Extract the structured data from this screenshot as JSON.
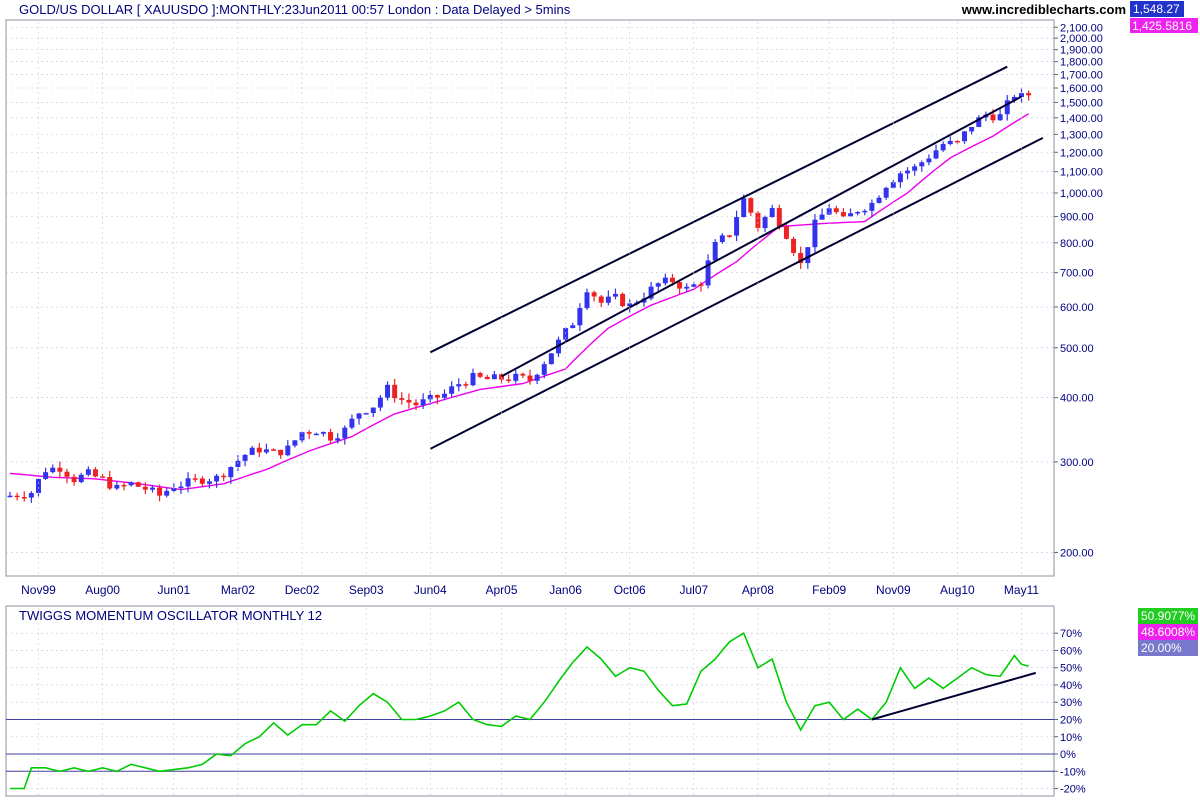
{
  "header": {
    "title": "GOLD/US DOLLAR [ XAUUSDO ]:MONTHLY:23Jun2011 00:57 London : Data Delayed > 5mins",
    "site": "www.incrediblecharts.com",
    "last_price_tag": "1,548.27",
    "ma_tag": "1,425.5816"
  },
  "lower": {
    "title": "TWIGGS MOMENTUM OSCILLATOR MONTHLY 12",
    "tags": [
      "50.9077%",
      "48.6008%",
      "20.00%"
    ]
  },
  "colors": {
    "up_candle": "#3333ee",
    "down_candle": "#ee2222",
    "moving_average": "#ee00ee",
    "oscillator": "#00cc00",
    "trendline": "#000033",
    "grid": "#c8c8d8",
    "axis_text": "#000080"
  },
  "chart_data": [
    {
      "type": "candlestick",
      "title": "GOLD/US DOLLAR [ XAUUSDO ]:MONTHLY:23Jun2011 00:57 London : Data Delayed > 5mins",
      "scale": "log",
      "ylim": [
        180,
        2150
      ],
      "y_tick_labels": [
        "2,100.00",
        "2,000.00",
        "1,900.00",
        "1,800.00",
        "1,700.00",
        "1,600.00",
        "1,500.00",
        "1,400.00",
        "1,300.00",
        "1,200.00",
        "1,100.00",
        "1,000.00",
        "900.00",
        "800.00",
        "700.00",
        "600.00",
        "500.00",
        "400.00",
        "300.00",
        "200.00"
      ],
      "y_ticks": [
        2100,
        2000,
        1900,
        1800,
        1700,
        1600,
        1500,
        1400,
        1300,
        1200,
        1100,
        1000,
        900,
        800,
        700,
        600,
        500,
        400,
        300,
        200
      ],
      "x_tick_labels": [
        "Nov99",
        "Aug00",
        "Jun01",
        "Mar02",
        "Dec02",
        "Sep03",
        "Jun04",
        "Apr05",
        "Jan06",
        "Oct06",
        "Jul07",
        "Apr08",
        "Feb09",
        "Nov09",
        "Aug10",
        "May11"
      ],
      "close_anchors": [
        [
          "1999-07",
          258
        ],
        [
          "1999-10",
          262
        ],
        [
          "1999-12",
          290
        ],
        [
          "2000-02",
          293
        ],
        [
          "2000-04",
          278
        ],
        [
          "2000-06",
          284
        ],
        [
          "2000-08",
          277
        ],
        [
          "2000-10",
          266
        ],
        [
          "2000-12",
          272
        ],
        [
          "2001-02",
          266
        ],
        [
          "2001-04",
          258
        ],
        [
          "2001-06",
          270
        ],
        [
          "2001-08",
          273
        ],
        [
          "2001-10",
          278
        ],
        [
          "2001-12",
          279
        ],
        [
          "2002-02",
          294
        ],
        [
          "2002-04",
          310
        ],
        [
          "2002-06",
          318
        ],
        [
          "2002-08",
          312
        ],
        [
          "2002-10",
          318
        ],
        [
          "2002-12",
          343
        ],
        [
          "2003-02",
          346
        ],
        [
          "2003-04",
          336
        ],
        [
          "2003-06",
          346
        ],
        [
          "2003-08",
          375
        ],
        [
          "2003-10",
          386
        ],
        [
          "2003-12",
          416
        ],
        [
          "2004-02",
          396
        ],
        [
          "2004-04",
          388
        ],
        [
          "2004-06",
          396
        ],
        [
          "2004-08",
          406
        ],
        [
          "2004-10",
          426
        ],
        [
          "2004-12",
          437
        ],
        [
          "2005-02",
          434
        ],
        [
          "2005-04",
          436
        ],
        [
          "2005-06",
          437
        ],
        [
          "2005-08",
          433
        ],
        [
          "2005-10",
          470
        ],
        [
          "2005-12",
          513
        ],
        [
          "2006-02",
          560
        ],
        [
          "2006-04",
          655
        ],
        [
          "2006-06",
          612
        ],
        [
          "2006-08",
          624
        ],
        [
          "2006-10",
          604
        ],
        [
          "2006-12",
          633
        ],
        [
          "2007-02",
          665
        ],
        [
          "2007-04",
          676
        ],
        [
          "2007-06",
          650
        ],
        [
          "2007-08",
          672
        ],
        [
          "2007-10",
          790
        ],
        [
          "2007-12",
          836
        ],
        [
          "2008-02",
          972
        ],
        [
          "2008-04",
          862
        ],
        [
          "2008-06",
          928
        ],
        [
          "2008-08",
          833
        ],
        [
          "2008-10",
          725
        ],
        [
          "2008-12",
          868
        ],
        [
          "2009-02",
          942
        ],
        [
          "2009-04",
          883
        ],
        [
          "2009-06",
          929
        ],
        [
          "2009-08",
          955
        ],
        [
          "2009-10",
          1040
        ],
        [
          "2009-12",
          1096
        ],
        [
          "2010-02",
          1118
        ],
        [
          "2010-04",
          1180
        ],
        [
          "2010-06",
          1245
        ],
        [
          "2010-08",
          1248
        ],
        [
          "2010-10",
          1357
        ],
        [
          "2010-12",
          1421
        ],
        [
          "2011-02",
          1410
        ],
        [
          "2011-04",
          1556
        ],
        [
          "2011-05",
          1536
        ],
        [
          "2011-06",
          1548.27
        ]
      ],
      "moving_average_anchors": [
        [
          "1999-07",
          285
        ],
        [
          "2000-01",
          280
        ],
        [
          "2000-07",
          278
        ],
        [
          "2001-01",
          272
        ],
        [
          "2001-07",
          265
        ],
        [
          "2002-01",
          272
        ],
        [
          "2002-07",
          290
        ],
        [
          "2003-01",
          315
        ],
        [
          "2003-07",
          336
        ],
        [
          "2004-01",
          372
        ],
        [
          "2004-07",
          393
        ],
        [
          "2005-01",
          415
        ],
        [
          "2005-07",
          426
        ],
        [
          "2006-01",
          455
        ],
        [
          "2006-07",
          546
        ],
        [
          "2007-01",
          605
        ],
        [
          "2007-07",
          650
        ],
        [
          "2008-01",
          735
        ],
        [
          "2008-07",
          860
        ],
        [
          "2009-01",
          872
        ],
        [
          "2009-07",
          880
        ],
        [
          "2010-01",
          1000
        ],
        [
          "2010-07",
          1170
        ],
        [
          "2011-01",
          1290
        ],
        [
          "2011-06",
          1425.58
        ]
      ],
      "channel_lines": [
        {
          "name": "upper",
          "from": [
            "2004-06",
            490
          ],
          "to": [
            "2011-03",
            1760
          ]
        },
        {
          "name": "middle",
          "from": [
            "2005-04",
            440
          ],
          "to": [
            "2011-05",
            1540
          ]
        },
        {
          "name": "lower",
          "from": [
            "2004-06",
            318
          ],
          "to": [
            "2011-08",
            1280
          ]
        }
      ],
      "last_price": 1548.27,
      "last_moving_average": 1425.5816
    },
    {
      "type": "line",
      "title": "TWIGGS MOMENTUM OSCILLATOR MONTHLY 12",
      "ylim": [
        -22,
        73
      ],
      "y_tick_labels": [
        "70%",
        "60%",
        "50%",
        "40%",
        "30%",
        "20%",
        "10%",
        "0%",
        "-10%",
        "-20%"
      ],
      "y_ticks": [
        70,
        60,
        50,
        40,
        30,
        20,
        10,
        0,
        -10,
        -20
      ],
      "reference_lines": [
        20,
        0,
        -10
      ],
      "values_anchors": [
        [
          "1999-07",
          -20
        ],
        [
          "1999-09",
          -20
        ],
        [
          "1999-10",
          -8
        ],
        [
          "1999-12",
          -8
        ],
        [
          "2000-02",
          -10
        ],
        [
          "2000-04",
          -8
        ],
        [
          "2000-06",
          -10
        ],
        [
          "2000-08",
          -8
        ],
        [
          "2000-10",
          -10
        ],
        [
          "2000-12",
          -6
        ],
        [
          "2001-02",
          -8
        ],
        [
          "2001-04",
          -10
        ],
        [
          "2001-06",
          -9
        ],
        [
          "2001-08",
          -8
        ],
        [
          "2001-10",
          -6
        ],
        [
          "2001-12",
          0
        ],
        [
          "2002-02",
          -1
        ],
        [
          "2002-04",
          6
        ],
        [
          "2002-06",
          10
        ],
        [
          "2002-08",
          18
        ],
        [
          "2002-10",
          11
        ],
        [
          "2002-12",
          17
        ],
        [
          "2003-02",
          17
        ],
        [
          "2003-04",
          25
        ],
        [
          "2003-06",
          19
        ],
        [
          "2003-08",
          28
        ],
        [
          "2003-10",
          35
        ],
        [
          "2003-12",
          30
        ],
        [
          "2004-02",
          20
        ],
        [
          "2004-04",
          20
        ],
        [
          "2004-06",
          22
        ],
        [
          "2004-08",
          25
        ],
        [
          "2004-10",
          30
        ],
        [
          "2004-12",
          20
        ],
        [
          "2005-02",
          17
        ],
        [
          "2005-04",
          16
        ],
        [
          "2005-06",
          22
        ],
        [
          "2005-08",
          20
        ],
        [
          "2005-10",
          30
        ],
        [
          "2005-12",
          42
        ],
        [
          "2006-02",
          53
        ],
        [
          "2006-04",
          62
        ],
        [
          "2006-06",
          55
        ],
        [
          "2006-08",
          45
        ],
        [
          "2006-10",
          50
        ],
        [
          "2006-12",
          48
        ],
        [
          "2007-02",
          37
        ],
        [
          "2007-04",
          28
        ],
        [
          "2007-06",
          29
        ],
        [
          "2007-08",
          48
        ],
        [
          "2007-10",
          55
        ],
        [
          "2007-12",
          65
        ],
        [
          "2008-02",
          70
        ],
        [
          "2008-04",
          50
        ],
        [
          "2008-06",
          55
        ],
        [
          "2008-08",
          30
        ],
        [
          "2008-10",
          14
        ],
        [
          "2008-12",
          28
        ],
        [
          "2009-02",
          30
        ],
        [
          "2009-04",
          20
        ],
        [
          "2009-06",
          26
        ],
        [
          "2009-08",
          20
        ],
        [
          "2009-10",
          30
        ],
        [
          "2009-12",
          50
        ],
        [
          "2010-02",
          38
        ],
        [
          "2010-04",
          44
        ],
        [
          "2010-06",
          38
        ],
        [
          "2010-08",
          44
        ],
        [
          "2010-10",
          50
        ],
        [
          "2010-12",
          46
        ],
        [
          "2011-02",
          45
        ],
        [
          "2011-04",
          57
        ],
        [
          "2011-05",
          52
        ],
        [
          "2011-06",
          50.9077
        ]
      ],
      "trendline": {
        "from": [
          "2009-08",
          20
        ],
        "to": [
          "2011-07",
          47
        ]
      },
      "signal_value": 48.6008,
      "level_value": 20.0
    }
  ]
}
